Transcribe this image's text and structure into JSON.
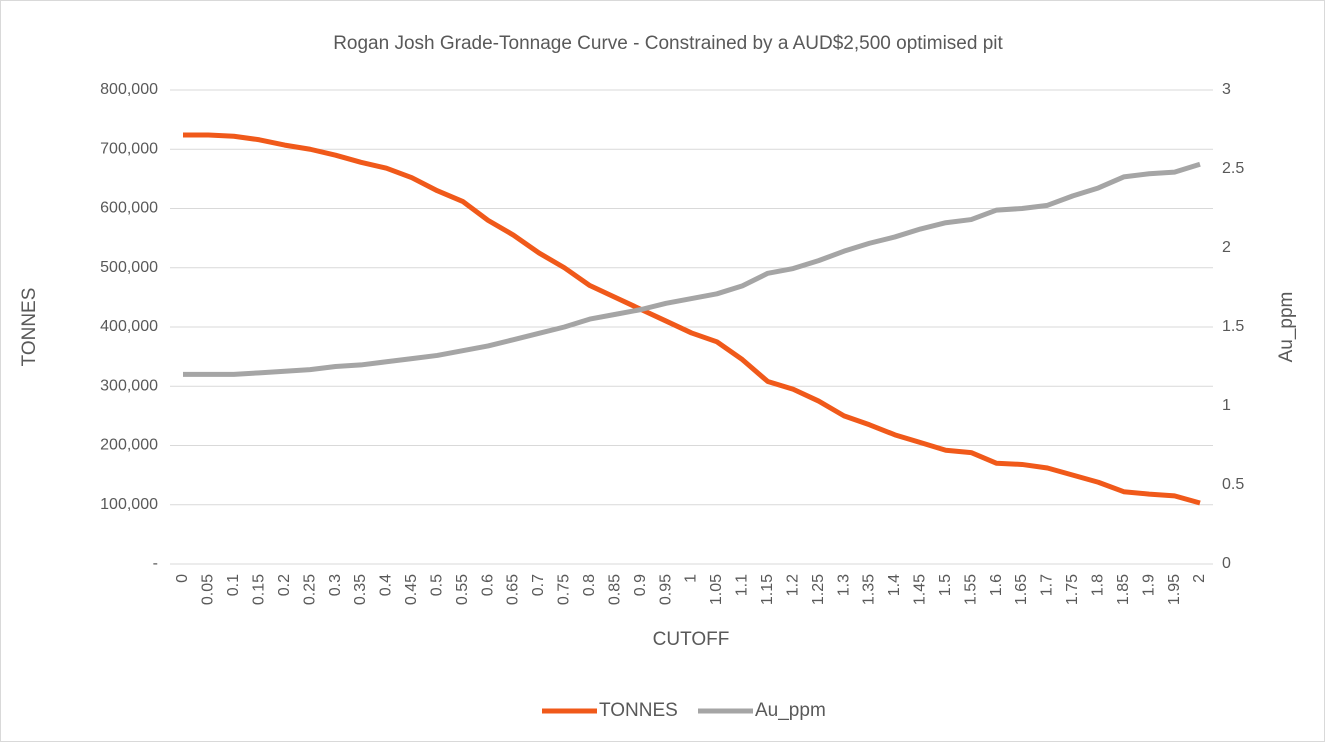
{
  "chart_data": {
    "type": "line",
    "title": "Rogan Josh Grade-Tonnage Curve - Constrained by a AUD$2,500 optimised pit",
    "x_label": "CUTOFF",
    "y_label": "TONNES",
    "y2_label": "Au_ppm",
    "x": [
      0,
      0.05,
      0.1,
      0.15,
      0.2,
      0.25,
      0.3,
      0.35,
      0.4,
      0.45,
      0.5,
      0.55,
      0.6,
      0.65,
      0.7,
      0.75,
      0.8,
      0.85,
      0.9,
      0.95,
      1,
      1.05,
      1.1,
      1.15,
      1.2,
      1.25,
      1.3,
      1.35,
      1.4,
      1.45,
      1.5,
      1.55,
      1.6,
      1.65,
      1.7,
      1.75,
      1.8,
      1.85,
      1.9,
      1.95,
      2
    ],
    "xlim": [
      0,
      2
    ],
    "series": [
      {
        "name": "TONNES",
        "color": "#f0591a",
        "values": [
          724000,
          724000,
          722000,
          716000,
          707000,
          700000,
          690000,
          678000,
          668000,
          652000,
          630000,
          612000,
          580000,
          555000,
          525000,
          500000,
          470000,
          450000,
          430000,
          410000,
          390000,
          375000,
          345000,
          308000,
          295000,
          275000,
          250000,
          235000,
          218000,
          205000,
          192000,
          188000,
          170000,
          168000,
          162000,
          150000,
          138000,
          122000,
          118000,
          115000,
          103000
        ]
      },
      {
        "name": "Au_ppm",
        "color": "#a5a5a5",
        "axis": "y2",
        "values": [
          1.2,
          1.2,
          1.2,
          1.21,
          1.22,
          1.23,
          1.25,
          1.26,
          1.28,
          1.3,
          1.32,
          1.35,
          1.38,
          1.42,
          1.46,
          1.5,
          1.55,
          1.58,
          1.61,
          1.65,
          1.68,
          1.71,
          1.76,
          1.84,
          1.87,
          1.92,
          1.98,
          2.03,
          2.07,
          2.12,
          2.16,
          2.18,
          2.24,
          2.25,
          2.27,
          2.33,
          2.38,
          2.45,
          2.47,
          2.48,
          2.53
        ]
      }
    ],
    "ylim": [
      0,
      800000
    ],
    "yticks": [
      {
        "value": 0,
        "label": "-"
      },
      {
        "value": 100000,
        "label": "100,000"
      },
      {
        "value": 200000,
        "label": "200,000"
      },
      {
        "value": 300000,
        "label": "300,000"
      },
      {
        "value": 400000,
        "label": "400,000"
      },
      {
        "value": 500000,
        "label": "500,000"
      },
      {
        "value": 600000,
        "label": "600,000"
      },
      {
        "value": 700000,
        "label": "700,000"
      },
      {
        "value": 800000,
        "label": "800,000"
      }
    ],
    "y2lim": [
      0,
      3
    ],
    "y2ticks": [
      0,
      0.5,
      1,
      1.5,
      2,
      2.5,
      3
    ],
    "grid": true,
    "legend": "bottom"
  }
}
